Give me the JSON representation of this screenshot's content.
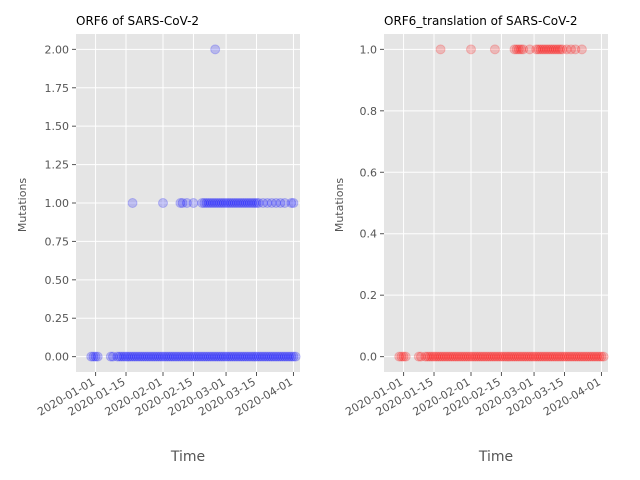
{
  "chart_data": [
    {
      "type": "scatter",
      "title": "ORF6 of SARS-CoV-2",
      "xlabel": "Time",
      "ylabel": "Mutations",
      "color": "#0000ff",
      "alpha": 0.2,
      "grid": true,
      "background": "#e5e5e5",
      "xlim": [
        "2019-12-23",
        "2020-04-04"
      ],
      "ylim": [
        -0.1,
        2.1
      ],
      "x_ticks": [
        "2020-01-01",
        "2020-01-15",
        "2020-02-01",
        "2020-02-15",
        "2020-03-01",
        "2020-03-15",
        "2020-04-01"
      ],
      "y_ticks": [
        "0.00",
        "0.25",
        "0.50",
        "0.75",
        "1.00",
        "1.25",
        "1.50",
        "1.75",
        "2.00"
      ],
      "y_tick_values": [
        0,
        0.25,
        0.5,
        0.75,
        1.0,
        1.25,
        1.5,
        1.75,
        2.0
      ],
      "series": [
        {
          "points": [
            [
              "2019-12-30",
              0
            ],
            [
              "2019-12-31",
              0
            ],
            [
              "2020-01-01",
              0
            ],
            [
              "2020-01-02",
              0
            ],
            [
              "2020-01-08",
              0
            ],
            [
              "2020-01-09",
              0
            ],
            [
              "2020-01-11",
              0
            ],
            [
              "2020-01-12",
              0
            ],
            [
              "2020-01-13",
              0
            ],
            [
              "2020-01-14",
              0
            ],
            [
              "2020-01-15",
              0
            ],
            [
              "2020-01-16",
              0
            ],
            [
              "2020-01-17",
              0
            ],
            [
              "2020-01-18",
              0
            ],
            [
              "2020-01-19",
              0
            ],
            [
              "2020-01-20",
              0
            ],
            [
              "2020-01-21",
              0
            ],
            [
              "2020-01-22",
              0
            ],
            [
              "2020-01-23",
              0
            ],
            [
              "2020-01-24",
              0
            ],
            [
              "2020-01-25",
              0
            ],
            [
              "2020-01-26",
              0
            ],
            [
              "2020-01-27",
              0
            ],
            [
              "2020-01-28",
              0
            ],
            [
              "2020-01-29",
              0
            ],
            [
              "2020-01-30",
              0
            ],
            [
              "2020-01-31",
              0
            ],
            [
              "2020-02-01",
              0
            ],
            [
              "2020-02-02",
              0
            ],
            [
              "2020-02-03",
              0
            ],
            [
              "2020-02-04",
              0
            ],
            [
              "2020-02-05",
              0
            ],
            [
              "2020-02-06",
              0
            ],
            [
              "2020-02-07",
              0
            ],
            [
              "2020-02-08",
              0
            ],
            [
              "2020-02-09",
              0
            ],
            [
              "2020-02-10",
              0
            ],
            [
              "2020-02-11",
              0
            ],
            [
              "2020-02-12",
              0
            ],
            [
              "2020-02-13",
              0
            ],
            [
              "2020-02-14",
              0
            ],
            [
              "2020-02-15",
              0
            ],
            [
              "2020-02-16",
              0
            ],
            [
              "2020-02-17",
              0
            ],
            [
              "2020-02-18",
              0
            ],
            [
              "2020-02-19",
              0
            ],
            [
              "2020-02-20",
              0
            ],
            [
              "2020-02-21",
              0
            ],
            [
              "2020-02-22",
              0
            ],
            [
              "2020-02-23",
              0
            ],
            [
              "2020-02-24",
              0
            ],
            [
              "2020-02-25",
              0
            ],
            [
              "2020-02-26",
              0
            ],
            [
              "2020-02-27",
              0
            ],
            [
              "2020-02-28",
              0
            ],
            [
              "2020-02-29",
              0
            ],
            [
              "2020-03-01",
              0
            ],
            [
              "2020-03-02",
              0
            ],
            [
              "2020-03-03",
              0
            ],
            [
              "2020-03-04",
              0
            ],
            [
              "2020-03-05",
              0
            ],
            [
              "2020-03-06",
              0
            ],
            [
              "2020-03-07",
              0
            ],
            [
              "2020-03-08",
              0
            ],
            [
              "2020-03-09",
              0
            ],
            [
              "2020-03-10",
              0
            ],
            [
              "2020-03-11",
              0
            ],
            [
              "2020-03-12",
              0
            ],
            [
              "2020-03-13",
              0
            ],
            [
              "2020-03-14",
              0
            ],
            [
              "2020-03-15",
              0
            ],
            [
              "2020-03-16",
              0
            ],
            [
              "2020-03-17",
              0
            ],
            [
              "2020-03-18",
              0
            ],
            [
              "2020-03-19",
              0
            ],
            [
              "2020-03-20",
              0
            ],
            [
              "2020-03-21",
              0
            ],
            [
              "2020-03-22",
              0
            ],
            [
              "2020-03-23",
              0
            ],
            [
              "2020-03-24",
              0
            ],
            [
              "2020-03-25",
              0
            ],
            [
              "2020-03-26",
              0
            ],
            [
              "2020-03-27",
              0
            ],
            [
              "2020-03-28",
              0
            ],
            [
              "2020-03-29",
              0
            ],
            [
              "2020-03-30",
              0
            ],
            [
              "2020-03-31",
              0
            ],
            [
              "2020-04-01",
              0
            ],
            [
              "2020-04-02",
              0
            ],
            [
              "2020-01-18",
              1
            ],
            [
              "2020-02-01",
              1
            ],
            [
              "2020-02-09",
              1
            ],
            [
              "2020-02-10",
              1
            ],
            [
              "2020-02-12",
              1
            ],
            [
              "2020-02-15",
              1
            ],
            [
              "2020-02-19",
              1
            ],
            [
              "2020-02-20",
              1
            ],
            [
              "2020-02-21",
              1
            ],
            [
              "2020-02-22",
              1
            ],
            [
              "2020-02-23",
              1
            ],
            [
              "2020-02-24",
              1
            ],
            [
              "2020-02-25",
              1
            ],
            [
              "2020-02-26",
              1
            ],
            [
              "2020-02-27",
              1
            ],
            [
              "2020-02-28",
              1
            ],
            [
              "2020-02-29",
              1
            ],
            [
              "2020-03-01",
              1
            ],
            [
              "2020-03-02",
              1
            ],
            [
              "2020-03-03",
              1
            ],
            [
              "2020-03-04",
              1
            ],
            [
              "2020-03-05",
              1
            ],
            [
              "2020-03-06",
              1
            ],
            [
              "2020-03-07",
              1
            ],
            [
              "2020-03-08",
              1
            ],
            [
              "2020-03-09",
              1
            ],
            [
              "2020-03-10",
              1
            ],
            [
              "2020-03-11",
              1
            ],
            [
              "2020-03-12",
              1
            ],
            [
              "2020-03-13",
              1
            ],
            [
              "2020-03-14",
              1
            ],
            [
              "2020-03-15",
              1
            ],
            [
              "2020-03-16",
              1
            ],
            [
              "2020-03-18",
              1
            ],
            [
              "2020-03-20",
              1
            ],
            [
              "2020-03-22",
              1
            ],
            [
              "2020-03-24",
              1
            ],
            [
              "2020-03-26",
              1
            ],
            [
              "2020-03-28",
              1
            ],
            [
              "2020-03-31",
              1
            ],
            [
              "2020-04-01",
              1
            ],
            [
              "2020-02-25",
              2
            ]
          ]
        }
      ]
    },
    {
      "type": "scatter",
      "title": "ORF6_translation of SARS-CoV-2",
      "xlabel": "Time",
      "ylabel": "Mutations",
      "color": "#ff0000",
      "alpha": 0.2,
      "grid": true,
      "background": "#e5e5e5",
      "xlim": [
        "2019-12-23",
        "2020-04-04"
      ],
      "ylim": [
        -0.05,
        1.05
      ],
      "x_ticks": [
        "2020-01-01",
        "2020-01-15",
        "2020-02-01",
        "2020-02-15",
        "2020-03-01",
        "2020-03-15",
        "2020-04-01"
      ],
      "y_ticks": [
        "0.0",
        "0.2",
        "0.4",
        "0.6",
        "0.8",
        "1.0"
      ],
      "y_tick_values": [
        0,
        0.2,
        0.4,
        0.6,
        0.8,
        1.0
      ],
      "series": [
        {
          "points": [
            [
              "2019-12-30",
              0
            ],
            [
              "2019-12-31",
              0
            ],
            [
              "2020-01-01",
              0
            ],
            [
              "2020-01-02",
              0
            ],
            [
              "2020-01-08",
              0
            ],
            [
              "2020-01-09",
              0
            ],
            [
              "2020-01-11",
              0
            ],
            [
              "2020-01-12",
              0
            ],
            [
              "2020-01-13",
              0
            ],
            [
              "2020-01-14",
              0
            ],
            [
              "2020-01-15",
              0
            ],
            [
              "2020-01-16",
              0
            ],
            [
              "2020-01-17",
              0
            ],
            [
              "2020-01-18",
              0
            ],
            [
              "2020-01-19",
              0
            ],
            [
              "2020-01-20",
              0
            ],
            [
              "2020-01-21",
              0
            ],
            [
              "2020-01-22",
              0
            ],
            [
              "2020-01-23",
              0
            ],
            [
              "2020-01-24",
              0
            ],
            [
              "2020-01-25",
              0
            ],
            [
              "2020-01-26",
              0
            ],
            [
              "2020-01-27",
              0
            ],
            [
              "2020-01-28",
              0
            ],
            [
              "2020-01-29",
              0
            ],
            [
              "2020-01-30",
              0
            ],
            [
              "2020-01-31",
              0
            ],
            [
              "2020-02-01",
              0
            ],
            [
              "2020-02-02",
              0
            ],
            [
              "2020-02-03",
              0
            ],
            [
              "2020-02-04",
              0
            ],
            [
              "2020-02-05",
              0
            ],
            [
              "2020-02-06",
              0
            ],
            [
              "2020-02-07",
              0
            ],
            [
              "2020-02-08",
              0
            ],
            [
              "2020-02-09",
              0
            ],
            [
              "2020-02-10",
              0
            ],
            [
              "2020-02-11",
              0
            ],
            [
              "2020-02-12",
              0
            ],
            [
              "2020-02-13",
              0
            ],
            [
              "2020-02-14",
              0
            ],
            [
              "2020-02-15",
              0
            ],
            [
              "2020-02-16",
              0
            ],
            [
              "2020-02-17",
              0
            ],
            [
              "2020-02-18",
              0
            ],
            [
              "2020-02-19",
              0
            ],
            [
              "2020-02-20",
              0
            ],
            [
              "2020-02-21",
              0
            ],
            [
              "2020-02-22",
              0
            ],
            [
              "2020-02-23",
              0
            ],
            [
              "2020-02-24",
              0
            ],
            [
              "2020-02-25",
              0
            ],
            [
              "2020-02-26",
              0
            ],
            [
              "2020-02-27",
              0
            ],
            [
              "2020-02-28",
              0
            ],
            [
              "2020-02-29",
              0
            ],
            [
              "2020-03-01",
              0
            ],
            [
              "2020-03-02",
              0
            ],
            [
              "2020-03-03",
              0
            ],
            [
              "2020-03-04",
              0
            ],
            [
              "2020-03-05",
              0
            ],
            [
              "2020-03-06",
              0
            ],
            [
              "2020-03-07",
              0
            ],
            [
              "2020-03-08",
              0
            ],
            [
              "2020-03-09",
              0
            ],
            [
              "2020-03-10",
              0
            ],
            [
              "2020-03-11",
              0
            ],
            [
              "2020-03-12",
              0
            ],
            [
              "2020-03-13",
              0
            ],
            [
              "2020-03-14",
              0
            ],
            [
              "2020-03-15",
              0
            ],
            [
              "2020-03-16",
              0
            ],
            [
              "2020-03-17",
              0
            ],
            [
              "2020-03-18",
              0
            ],
            [
              "2020-03-19",
              0
            ],
            [
              "2020-03-20",
              0
            ],
            [
              "2020-03-21",
              0
            ],
            [
              "2020-03-22",
              0
            ],
            [
              "2020-03-23",
              0
            ],
            [
              "2020-03-24",
              0
            ],
            [
              "2020-03-25",
              0
            ],
            [
              "2020-03-26",
              0
            ],
            [
              "2020-03-27",
              0
            ],
            [
              "2020-03-28",
              0
            ],
            [
              "2020-03-29",
              0
            ],
            [
              "2020-03-30",
              0
            ],
            [
              "2020-03-31",
              0
            ],
            [
              "2020-04-01",
              0
            ],
            [
              "2020-04-02",
              0
            ],
            [
              "2020-01-18",
              1
            ],
            [
              "2020-02-01",
              1
            ],
            [
              "2020-02-12",
              1
            ],
            [
              "2020-02-21",
              1
            ],
            [
              "2020-02-22",
              1
            ],
            [
              "2020-02-23",
              1
            ],
            [
              "2020-02-24",
              1
            ],
            [
              "2020-02-25",
              1
            ],
            [
              "2020-02-28",
              1
            ],
            [
              "2020-03-02",
              1
            ],
            [
              "2020-03-03",
              1
            ],
            [
              "2020-03-04",
              1
            ],
            [
              "2020-03-05",
              1
            ],
            [
              "2020-03-06",
              1
            ],
            [
              "2020-03-07",
              1
            ],
            [
              "2020-03-08",
              1
            ],
            [
              "2020-03-09",
              1
            ],
            [
              "2020-03-10",
              1
            ],
            [
              "2020-03-11",
              1
            ],
            [
              "2020-03-12",
              1
            ],
            [
              "2020-03-13",
              1
            ],
            [
              "2020-03-14",
              1
            ],
            [
              "2020-03-16",
              1
            ],
            [
              "2020-03-18",
              1
            ],
            [
              "2020-03-20",
              1
            ],
            [
              "2020-03-23",
              1
            ]
          ]
        }
      ]
    }
  ]
}
